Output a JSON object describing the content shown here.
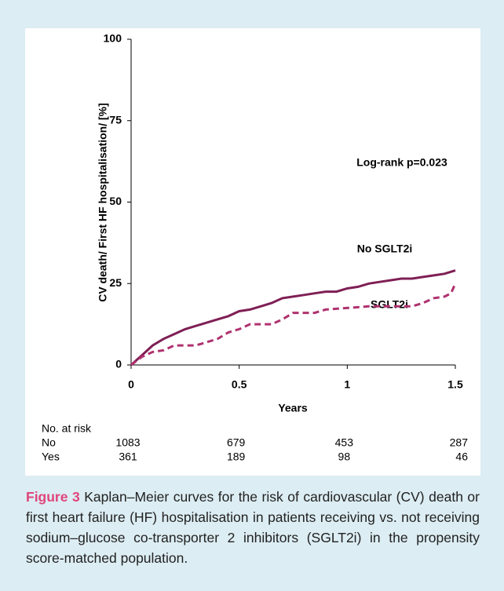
{
  "chart_data": {
    "type": "line",
    "ylabel": "CV death/ First HF hospitalisation/ [%]",
    "xlabel": "Years",
    "annotations": [
      "Log-rank p=0.023",
      "No SGLT2i",
      "SGLT2i"
    ],
    "xlim": [
      0,
      1.5
    ],
    "xticks": [
      0,
      0.5,
      1,
      1.5
    ],
    "ylim": [
      0,
      100
    ],
    "yticks": [
      0,
      25,
      50,
      75,
      100
    ],
    "grid": false,
    "series": [
      {
        "color": "#7f1f55",
        "dash": false,
        "x": [
          0,
          0.05,
          0.1,
          0.15,
          0.2,
          0.25,
          0.3,
          0.35,
          0.4,
          0.45,
          0.5,
          0.55,
          0.6,
          0.65,
          0.7,
          0.75,
          0.8,
          0.85,
          0.9,
          0.95,
          1.0,
          1.05,
          1.1,
          1.15,
          1.2,
          1.25,
          1.3,
          1.35,
          1.4,
          1.45,
          1.5
        ],
        "values": [
          0,
          3,
          6,
          8,
          9.5,
          11,
          12,
          13,
          14,
          15,
          16.5,
          17,
          18,
          19,
          20.5,
          21,
          21.5,
          22,
          22.5,
          22.5,
          23.5,
          24,
          25,
          25.5,
          26,
          26.5,
          26.5,
          27,
          27.5,
          28,
          29
        ]
      },
      {
        "color": "#b0326f",
        "dash": true,
        "x": [
          0,
          0.05,
          0.1,
          0.15,
          0.2,
          0.3,
          0.35,
          0.4,
          0.45,
          0.5,
          0.55,
          0.65,
          0.7,
          0.75,
          0.85,
          0.9,
          1.0,
          1.1,
          1.3,
          1.35,
          1.4,
          1.45,
          1.48,
          1.5
        ],
        "values": [
          0,
          2.5,
          4,
          4.5,
          6,
          6,
          7,
          8,
          10,
          11,
          12.5,
          12.5,
          14,
          16,
          16,
          17,
          17.5,
          18,
          18,
          19,
          20.5,
          21,
          22,
          25
        ]
      }
    ],
    "risk_table": {
      "title": "No. at risk",
      "rows": [
        {
          "label": "No",
          "values": [
            1083,
            679,
            453,
            287
          ]
        },
        {
          "label": "Yes",
          "values": [
            361,
            189,
            98,
            46
          ]
        }
      ]
    }
  },
  "caption": {
    "label": "Figure 3",
    "text": "Kaplan–Meier curves for the risk of cardiovascular (CV) death or first heart failure (HF) hospitalisation in patients receiving vs. not receiving sodium–glucose co-transporter 2 inhibitors (SGLT2i) in the propensity score-matched population."
  }
}
